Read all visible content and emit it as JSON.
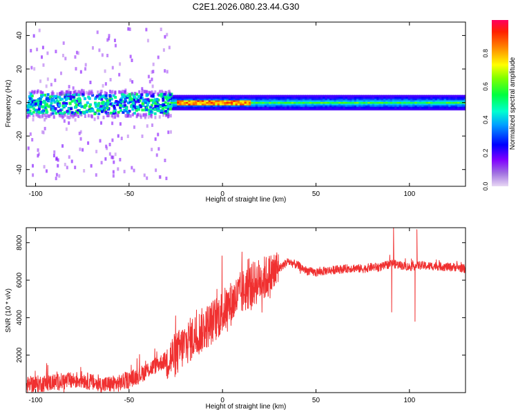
{
  "figure_title": "C2E1.2026.080.23.44.G30",
  "chart_data": [
    {
      "type": "heatmap",
      "title": "C2E1.2026.080.23.44.G30",
      "xlabel": "Height of straight line (km)",
      "ylabel": "Frequency (Hz)",
      "xlim": [
        -105,
        130
      ],
      "ylim": [
        -50,
        48
      ],
      "xticks": [
        -100,
        -50,
        0,
        50,
        100
      ],
      "xtick_labels": [
        "-100",
        "-50",
        "0",
        "50",
        "100"
      ],
      "yticks": [
        40,
        20,
        0,
        -20,
        -40
      ],
      "ytick_labels": [
        "40",
        "20",
        "0",
        "-20",
        "-40"
      ],
      "colorbar": {
        "label": "Normalized spectral amplitude",
        "range": [
          0.0,
          1.0
        ],
        "ticks": [
          0.0,
          0.2,
          0.4,
          0.6,
          0.8
        ],
        "tick_labels": [
          "0.0",
          "0.2",
          "0.4",
          "0.6",
          "0.8"
        ],
        "colormap": [
          "#c8a0e8",
          "#8000ff",
          "#0000ff",
          "#00c8ff",
          "#00ff80",
          "#40ff00",
          "#ffff00",
          "#ff8000",
          "#ff0000"
        ]
      },
      "description_of_structure": {
        "band_center_hz": 0,
        "noisy_region_km": [
          -105,
          -28
        ],
        "noisy_band_halfwidth_hz": 8,
        "stable_band_halfwidth_hz": 4,
        "peak_amplitude_region_km": [
          -25,
          15
        ],
        "stable_region_km": [
          -28,
          130
        ]
      }
    },
    {
      "type": "line",
      "title": "",
      "xlabel": "Height of straight line (km)",
      "ylabel": "SNR (10 * v/v)",
      "xlim": [
        -105,
        130
      ],
      "ylim": [
        0,
        8800
      ],
      "xticks": [
        -100,
        -50,
        0,
        50,
        100
      ],
      "xtick_labels": [
        "-100",
        "-50",
        "0",
        "50",
        "100"
      ],
      "yticks": [
        2000,
        4000,
        6000,
        8000
      ],
      "ytick_labels": [
        "2000",
        "4000",
        "6000",
        "8000"
      ],
      "color": "#f03030",
      "series": [
        {
          "name": "SNR",
          "x": [
            -105,
            -95,
            -85,
            -75,
            -65,
            -55,
            -45,
            -35,
            -25,
            -20,
            -15,
            -10,
            -5,
            0,
            5,
            10,
            15,
            20,
            25,
            30,
            35,
            40,
            45,
            50,
            55,
            60,
            65,
            70,
            75,
            80,
            85,
            90,
            95,
            100,
            105,
            110,
            115,
            120,
            125,
            130
          ],
          "values": [
            400,
            500,
            600,
            700,
            400,
            500,
            900,
            1500,
            2000,
            2600,
            3000,
            3400,
            3800,
            4300,
            4800,
            5300,
            5700,
            6000,
            6200,
            6600,
            7000,
            6800,
            6500,
            6400,
            6500,
            6550,
            6600,
            6650,
            6600,
            6700,
            6700,
            6900,
            6800,
            6700,
            6800,
            6750,
            6750,
            6700,
            6700,
            6600
          ]
        }
      ],
      "spikes": [
        {
          "x": 90.5,
          "value": 4300
        },
        {
          "x": 91.5,
          "value": 8800
        },
        {
          "x": 103,
          "value": 3800
        },
        {
          "x": 104,
          "value": 8700
        }
      ]
    }
  ]
}
